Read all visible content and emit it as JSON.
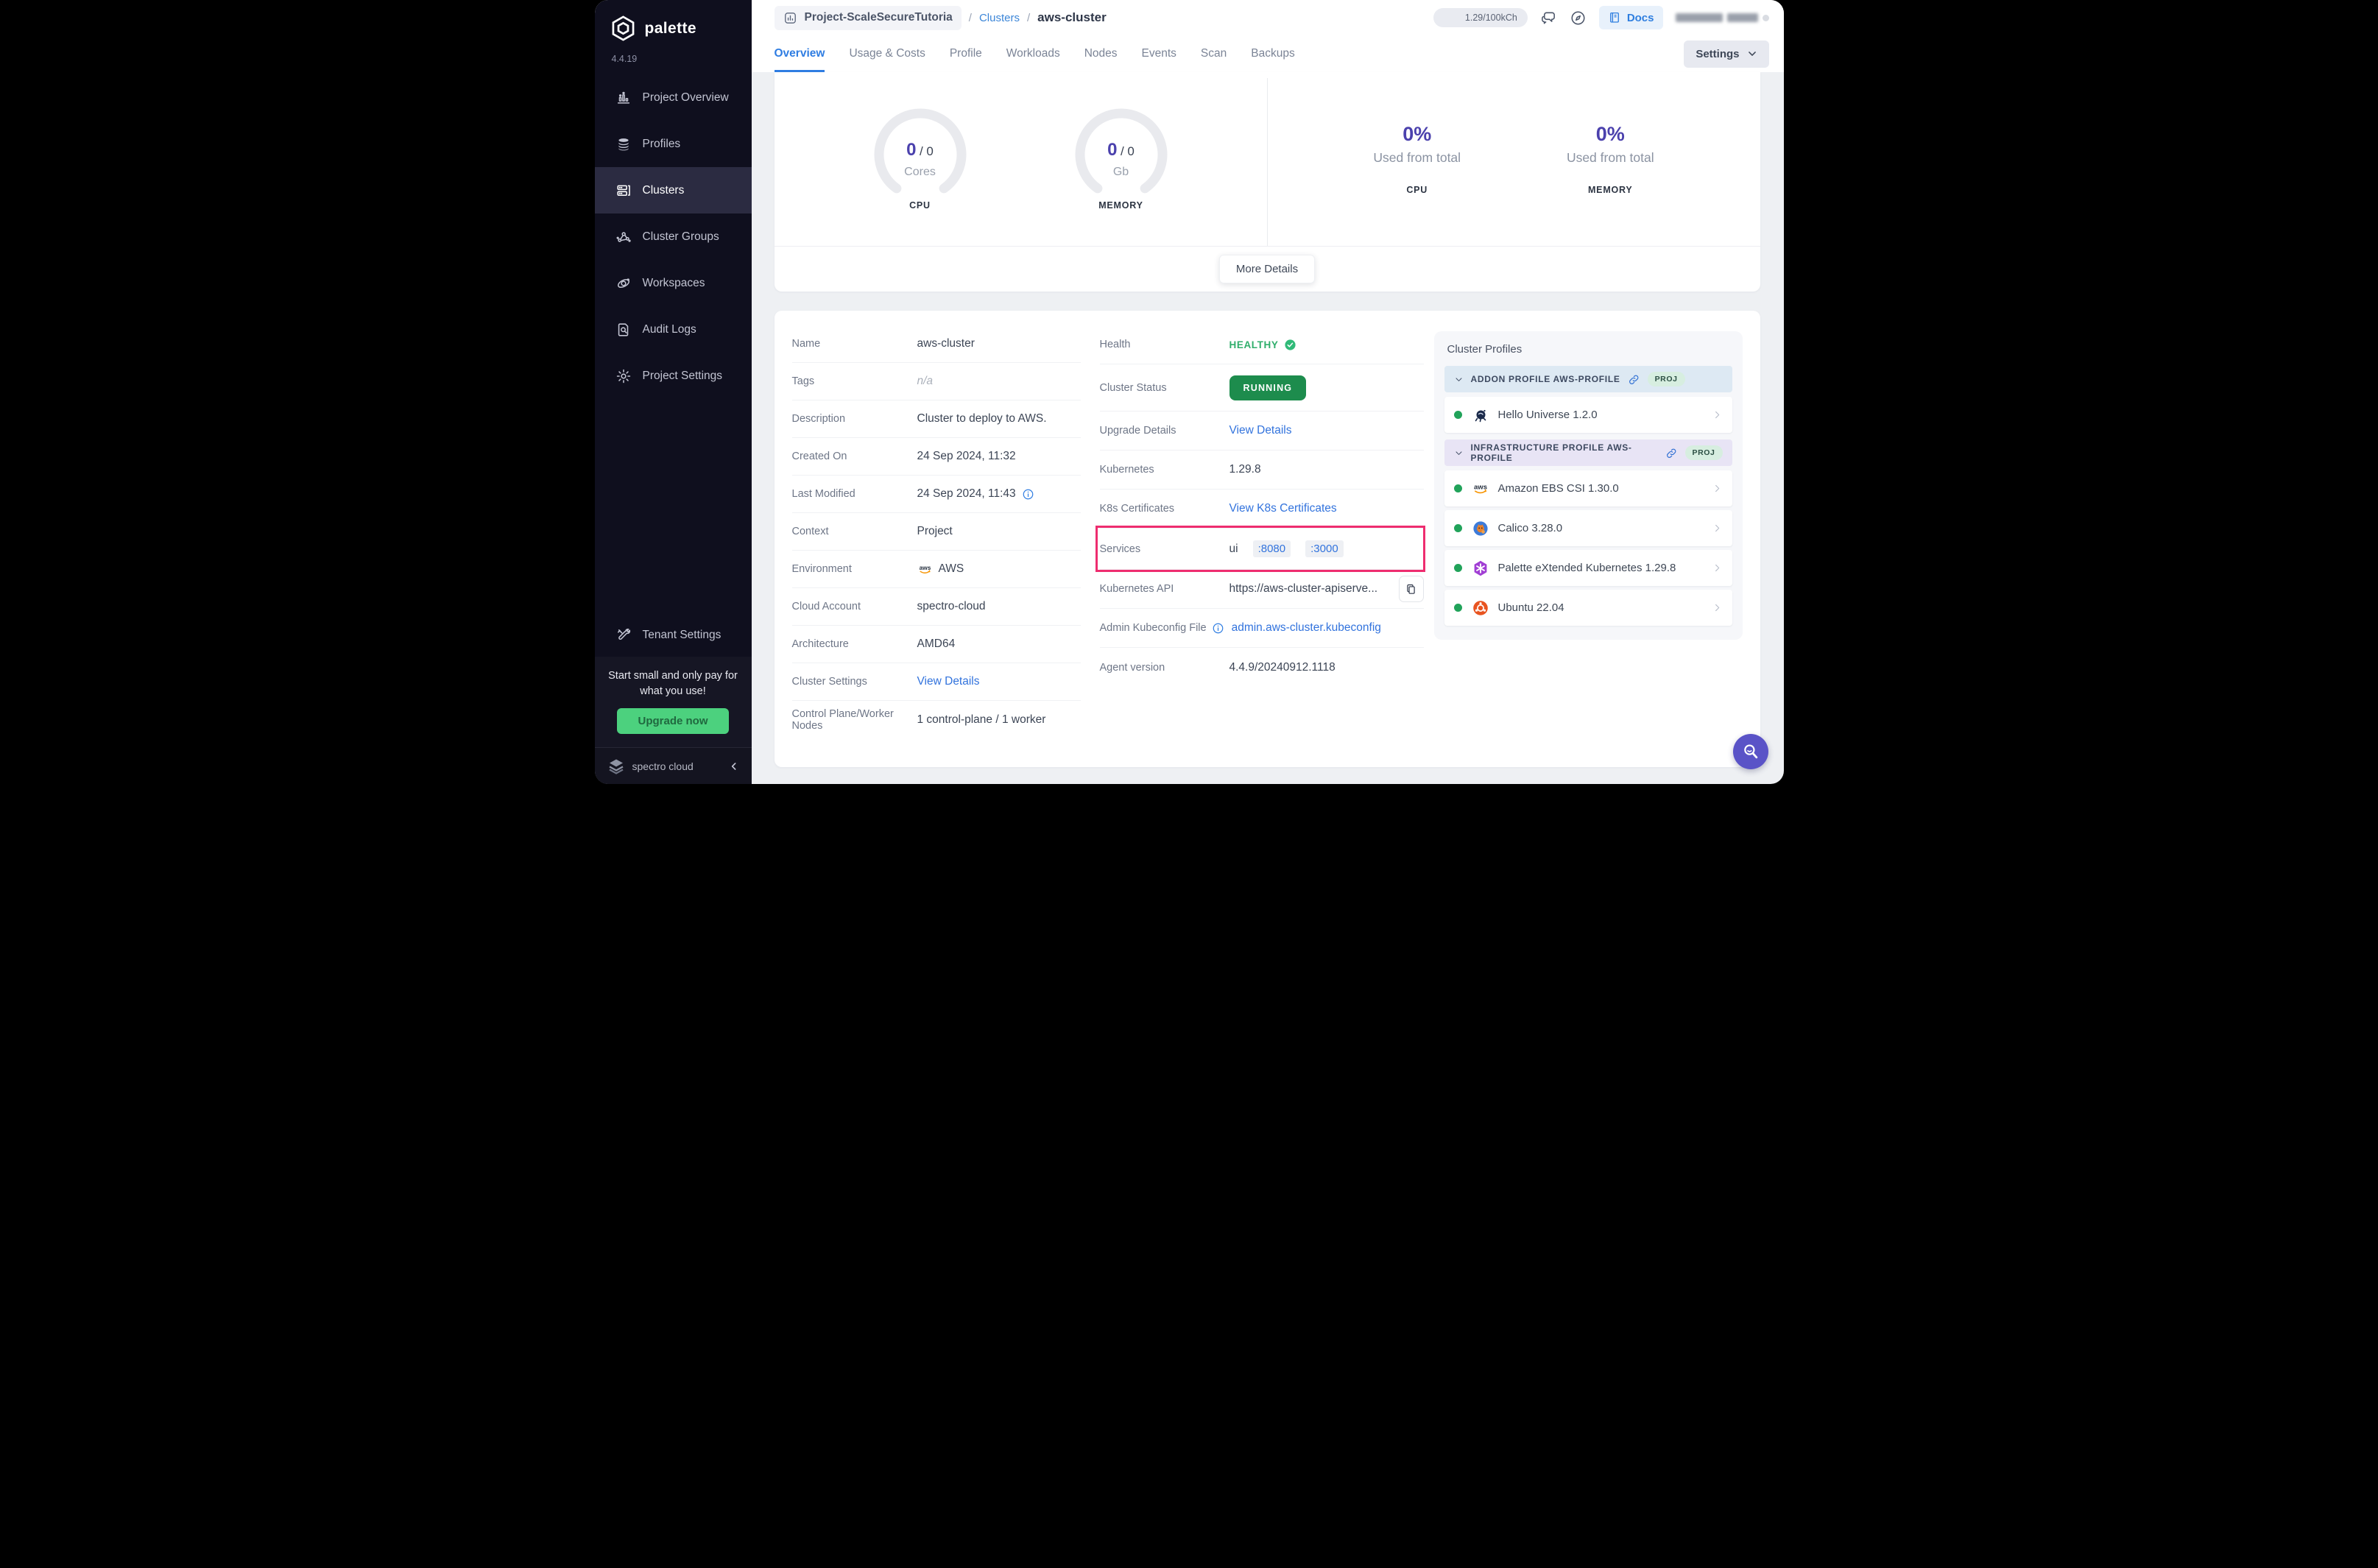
{
  "sidebar": {
    "brand": "palette",
    "version": "4.4.19",
    "items": [
      {
        "label": "Project Overview",
        "icon": "project-overview-icon",
        "active": false
      },
      {
        "label": "Profiles",
        "icon": "profiles-icon",
        "active": false
      },
      {
        "label": "Clusters",
        "icon": "clusters-icon",
        "active": true
      },
      {
        "label": "Cluster Groups",
        "icon": "cluster-groups-icon",
        "active": false
      },
      {
        "label": "Workspaces",
        "icon": "workspaces-icon",
        "active": false
      },
      {
        "label": "Audit Logs",
        "icon": "audit-logs-icon",
        "active": false
      },
      {
        "label": "Project Settings",
        "icon": "gear-icon",
        "active": false
      }
    ],
    "tenant_settings": {
      "label": "Tenant Settings",
      "icon": "tools-icon"
    },
    "upgrade": {
      "message": "Start small and only pay for what you use!",
      "button_label": "Upgrade now"
    },
    "footer": {
      "brand": "spectro cloud"
    }
  },
  "header": {
    "project_chip": "Project-ScaleSecureTutoria",
    "breadcrumb": {
      "separator": "/",
      "link": "Clusters",
      "current": "aws-cluster"
    },
    "usage_badge": "1.29/100kCh",
    "docs_label": "Docs"
  },
  "tabs": {
    "items": [
      "Overview",
      "Usage & Costs",
      "Profile",
      "Workloads",
      "Nodes",
      "Events",
      "Scan",
      "Backups"
    ],
    "active_index": 0,
    "settings_label": "Settings"
  },
  "overview": {
    "gauges": [
      {
        "used": "0",
        "total": "0",
        "unit": "Cores",
        "metric": "CPU"
      },
      {
        "used": "0",
        "total": "0",
        "unit": "Gb",
        "metric": "MEMORY"
      }
    ],
    "usage_stats": [
      {
        "percent": "0%",
        "caption": "Used from total",
        "metric": "CPU"
      },
      {
        "percent": "0%",
        "caption": "Used from total",
        "metric": "MEMORY"
      }
    ],
    "more_details_label": "More Details"
  },
  "details": {
    "left_rows": [
      {
        "label": "Name",
        "value": "aws-cluster",
        "type": "text"
      },
      {
        "label": "Tags",
        "value": "n/a",
        "type": "muted"
      },
      {
        "label": "Description",
        "value": "Cluster to deploy to AWS.",
        "type": "text"
      },
      {
        "label": "Created On",
        "value": "24 Sep 2024, 11:32",
        "type": "text"
      },
      {
        "label": "Last Modified",
        "value": "24 Sep 2024, 11:43",
        "type": "text",
        "value_icon_after": "info-icon"
      },
      {
        "label": "Context",
        "value": "Project",
        "type": "text"
      },
      {
        "label": "Environment",
        "value": "AWS",
        "type": "text",
        "value_icon_before": "aws-icon"
      },
      {
        "label": "Cloud Account",
        "value": "spectro-cloud",
        "type": "text"
      },
      {
        "label": "Architecture",
        "value": "AMD64",
        "type": "text"
      },
      {
        "label": "Cluster Settings",
        "value": "View Details",
        "type": "link"
      },
      {
        "label": "Control Plane/Worker Nodes",
        "value": "1 control-plane / 1 worker",
        "type": "text"
      }
    ],
    "right_rows": [
      {
        "label": "Health",
        "value": "HEALTHY",
        "type": "health"
      },
      {
        "label": "Cluster Status",
        "value": "RUNNING",
        "type": "status"
      },
      {
        "label": "Upgrade Details",
        "value": "View Details",
        "type": "link"
      },
      {
        "label": "Kubernetes",
        "value": "1.29.8",
        "type": "text"
      },
      {
        "label": "K8s Certificates",
        "value": "View K8s Certificates",
        "type": "link"
      },
      {
        "label": "Services",
        "type": "services",
        "service_name": "ui",
        "ports": [
          ":8080",
          ":3000"
        ],
        "highlighted": true
      },
      {
        "label": "Kubernetes API",
        "value": "https://aws-cluster-apiserve...",
        "type": "api"
      },
      {
        "label": "Admin Kubeconfig File",
        "label_icon": "info-icon",
        "value": "admin.aws-cluster.kubeconfig",
        "type": "link"
      },
      {
        "label": "Agent version",
        "value": "4.4.9/20240912.1118",
        "type": "text"
      }
    ]
  },
  "cluster_profiles": {
    "title": "Cluster Profiles",
    "sections": [
      {
        "header": "ADDON PROFILE AWS-PROFILE",
        "badge": "PROJ",
        "theme": "addon",
        "items": [
          {
            "name": "Hello Universe 1.2.0",
            "icon": "hello-universe-icon"
          }
        ]
      },
      {
        "header": "INFRASTRUCTURE PROFILE AWS-PROFILE",
        "badge": "PROJ",
        "theme": "infra",
        "items": [
          {
            "name": "Amazon EBS CSI 1.30.0",
            "icon": "aws-icon"
          },
          {
            "name": "Calico 3.28.0",
            "icon": "calico-icon"
          },
          {
            "name": "Palette eXtended Kubernetes 1.29.8",
            "icon": "pxk-icon"
          },
          {
            "name": "Ubuntu 22.04",
            "icon": "ubuntu-icon"
          }
        ]
      }
    ]
  },
  "colors": {
    "accent_blue": "#2f7de2",
    "link_blue": "#3273dd",
    "purple": "#4b41ad",
    "running_green": "#1d8c4d",
    "healthy_green": "#2fae6b",
    "pink_highlight": "#ee2d6f",
    "upgrade_green": "#4cd17e",
    "help_purple": "#5a53c7",
    "sidebar_bg": "#0f0f1e"
  }
}
